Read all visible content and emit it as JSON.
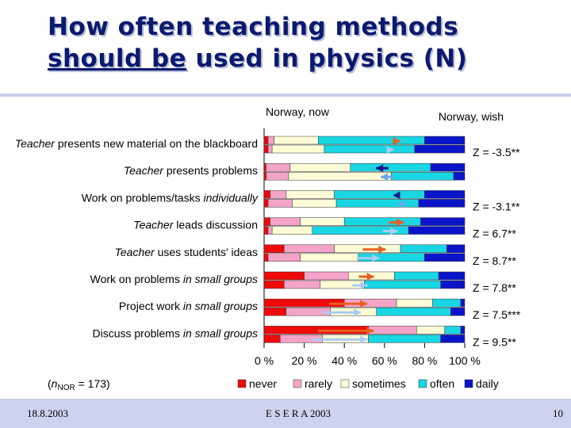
{
  "title": {
    "line1": "How often teaching methods",
    "line2_underlined": "should be",
    "line2_rest": " used in physics (N)"
  },
  "chart_data": {
    "type": "bar",
    "stacked": true,
    "orientation": "horizontal",
    "column_labels": {
      "now": "Norway, now",
      "wish": "Norway, wish"
    },
    "categories": [
      {
        "italic": "Teacher",
        "text": " presents new material on the blackboard"
      },
      {
        "italic": "Teacher",
        "text": " presents problems"
      },
      {
        "italic": "individually",
        "text": "Work on problems/tasks "
      },
      {
        "italic": "Teacher",
        "text": " leads discussion"
      },
      {
        "italic": "Teacher",
        "text": "  uses students' ideas"
      },
      {
        "italic": "in small groups",
        "text": "Work on problems "
      },
      {
        "italic": "in small groups",
        "text": "Project work  "
      },
      {
        "italic": "in small groups",
        "text": "Discuss problems "
      }
    ],
    "z_labels": [
      "Z = -3.5**",
      "",
      "Z = -3.1**",
      "Z = 6.7**",
      "Z = 8.7**",
      "Z = 7.8**",
      "Z = 7.5***",
      "Z = 9.5**"
    ],
    "series_names": [
      "never",
      "rarely",
      "sometimes",
      "often",
      "daily"
    ],
    "series_colors": [
      "#ee0a0a",
      "#f4a4c8",
      "#fdfcd6",
      "#19d6e3",
      "#0a14c8"
    ],
    "now": [
      [
        2,
        3,
        22,
        53,
        20
      ],
      [
        1,
        12,
        30,
        40,
        17
      ],
      [
        3,
        8,
        24,
        45,
        20
      ],
      [
        3,
        15,
        22,
        38,
        22
      ],
      [
        10,
        25,
        33,
        23,
        9
      ],
      [
        20,
        22,
        23,
        22,
        13
      ],
      [
        40,
        26,
        18,
        14,
        2
      ],
      [
        52,
        24,
        14,
        8,
        2
      ]
    ],
    "wish": [
      [
        2,
        2,
        26,
        45,
        25
      ],
      [
        1,
        10,
        46,
        28,
        5
      ],
      [
        2,
        12,
        22,
        41,
        23
      ],
      [
        2,
        2,
        20,
        48,
        28
      ],
      [
        2,
        16,
        29,
        33,
        20
      ],
      [
        10,
        18,
        22,
        38,
        12
      ],
      [
        11,
        22,
        23,
        37,
        7
      ],
      [
        8,
        21,
        23,
        36,
        12
      ]
    ],
    "x_axis": {
      "min": 0,
      "max": 100,
      "ticks": [
        "0 %",
        "20 %",
        "40 %",
        "60 %",
        "80 %",
        "100 %"
      ]
    },
    "note": "(nNOR = 173)",
    "note_parts": {
      "open": "(",
      "n": "n",
      "sub": "NOR",
      "rest": " = 173)"
    }
  },
  "footer": {
    "date": "18.8.2003",
    "center": "E S E R A  2003",
    "page": "10"
  }
}
